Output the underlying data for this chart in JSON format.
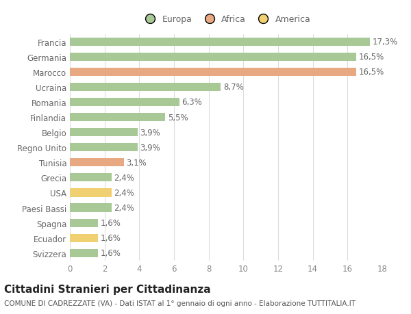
{
  "categories": [
    "Francia",
    "Germania",
    "Marocco",
    "Ucraina",
    "Romania",
    "Finlandia",
    "Belgio",
    "Regno Unito",
    "Tunisia",
    "Grecia",
    "USA",
    "Paesi Bassi",
    "Spagna",
    "Ecuador",
    "Svizzera"
  ],
  "values": [
    17.3,
    16.5,
    16.5,
    8.7,
    6.3,
    5.5,
    3.9,
    3.9,
    3.1,
    2.4,
    2.4,
    2.4,
    1.6,
    1.6,
    1.6
  ],
  "labels": [
    "17,3%",
    "16,5%",
    "16,5%",
    "8,7%",
    "6,3%",
    "5,5%",
    "3,9%",
    "3,9%",
    "3,1%",
    "2,4%",
    "2,4%",
    "2,4%",
    "1,6%",
    "1,6%",
    "1,6%"
  ],
  "continent": [
    "Europa",
    "Europa",
    "Africa",
    "Europa",
    "Europa",
    "Europa",
    "Europa",
    "Europa",
    "Africa",
    "Europa",
    "America",
    "Europa",
    "Europa",
    "America",
    "Europa"
  ],
  "colors": {
    "Europa": "#a8c896",
    "Africa": "#e8a882",
    "America": "#f0d070"
  },
  "legend_order": [
    "Europa",
    "Africa",
    "America"
  ],
  "xlim": [
    0,
    18
  ],
  "xticks": [
    0,
    2,
    4,
    6,
    8,
    10,
    12,
    14,
    16,
    18
  ],
  "title": "Cittadini Stranieri per Cittadinanza",
  "subtitle": "COMUNE DI CADREZZATE (VA) - Dati ISTAT al 1° gennaio di ogni anno - Elaborazione TUTTITALIA.IT",
  "background_color": "#ffffff",
  "grid_color": "#dddddd",
  "bar_height": 0.55,
  "label_fontsize": 8.5,
  "ytick_fontsize": 8.5,
  "xtick_fontsize": 8.5,
  "title_fontsize": 11,
  "subtitle_fontsize": 7.5,
  "legend_fontsize": 9
}
